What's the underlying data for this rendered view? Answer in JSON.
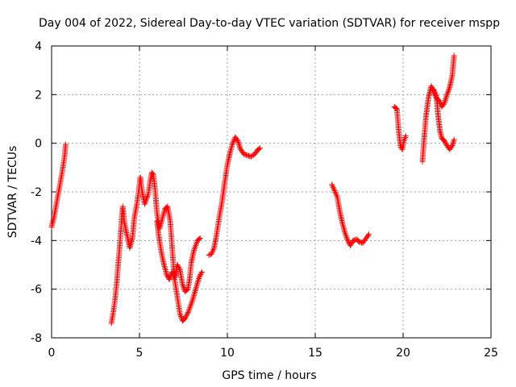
{
  "chart_data": {
    "type": "scatter",
    "title": "Day 004 of 2022, Sidereal Day-to-day VTEC variation (SDTVAR) for receiver mspp",
    "xlabel": "GPS time / hours",
    "ylabel": "SDTVAR / TECUs",
    "xlim": [
      0,
      25
    ],
    "ylim": [
      -8,
      4
    ],
    "xticks": [
      0,
      5,
      10,
      15,
      20,
      25
    ],
    "yticks": [
      -8,
      -6,
      -4,
      -2,
      0,
      2,
      4
    ],
    "grid": true,
    "marker": "+",
    "color": "#ff0000",
    "segments": [
      [
        [
          0.0,
          -3.45
        ],
        [
          0.15,
          -3.0
        ],
        [
          0.3,
          -2.4
        ],
        [
          0.45,
          -1.8
        ],
        [
          0.6,
          -1.2
        ],
        [
          0.75,
          -0.5
        ],
        [
          0.8,
          -0.05
        ]
      ],
      [
        [
          3.4,
          -7.4
        ],
        [
          3.5,
          -7.0
        ],
        [
          3.6,
          -6.5
        ],
        [
          3.7,
          -5.8
        ],
        [
          3.8,
          -4.9
        ],
        [
          3.9,
          -4.0
        ],
        [
          4.0,
          -3.0
        ],
        [
          4.05,
          -2.6
        ],
        [
          4.15,
          -3.3
        ],
        [
          4.3,
          -3.8
        ],
        [
          4.45,
          -4.3
        ],
        [
          4.6,
          -3.9
        ],
        [
          4.7,
          -3.1
        ],
        [
          4.85,
          -2.5
        ],
        [
          4.95,
          -2.0
        ],
        [
          5.05,
          -1.4
        ],
        [
          5.15,
          -2.0
        ],
        [
          5.3,
          -2.5
        ],
        [
          5.5,
          -2.1
        ],
        [
          5.6,
          -1.6
        ],
        [
          5.7,
          -1.2
        ],
        [
          5.8,
          -1.3
        ],
        [
          5.9,
          -2.0
        ],
        [
          6.0,
          -2.9
        ],
        [
          6.15,
          -3.5
        ],
        [
          6.3,
          -3.1
        ],
        [
          6.45,
          -2.7
        ],
        [
          6.6,
          -2.6
        ],
        [
          6.75,
          -3.2
        ],
        [
          6.85,
          -4.2
        ],
        [
          6.95,
          -5.2
        ],
        [
          7.05,
          -5.5
        ],
        [
          7.15,
          -5.0
        ],
        [
          7.3,
          -5.2
        ],
        [
          7.45,
          -5.8
        ],
        [
          7.6,
          -6.1
        ],
        [
          7.75,
          -6.0
        ],
        [
          7.85,
          -5.6
        ],
        [
          7.95,
          -4.9
        ],
        [
          8.1,
          -4.4
        ],
        [
          8.3,
          -4.0
        ],
        [
          8.45,
          -3.9
        ]
      ],
      [
        [
          6.0,
          -3.2
        ],
        [
          6.1,
          -3.8
        ],
        [
          6.25,
          -4.5
        ],
        [
          6.4,
          -5.0
        ],
        [
          6.55,
          -5.4
        ],
        [
          6.7,
          -5.6
        ],
        [
          6.85,
          -5.3
        ],
        [
          7.0,
          -5.6
        ],
        [
          7.15,
          -6.3
        ],
        [
          7.3,
          -7.0
        ],
        [
          7.45,
          -7.3
        ],
        [
          7.6,
          -7.2
        ],
        [
          7.8,
          -6.9
        ],
        [
          8.0,
          -6.5
        ],
        [
          8.2,
          -6.0
        ],
        [
          8.4,
          -5.5
        ],
        [
          8.55,
          -5.3
        ]
      ],
      [
        [
          8.95,
          -4.6
        ],
        [
          9.1,
          -4.55
        ],
        [
          9.25,
          -4.3
        ],
        [
          9.4,
          -3.7
        ],
        [
          9.55,
          -3.0
        ],
        [
          9.7,
          -2.4
        ],
        [
          9.85,
          -1.6
        ],
        [
          10.0,
          -0.9
        ],
        [
          10.15,
          -0.4
        ],
        [
          10.3,
          0.0
        ],
        [
          10.45,
          0.25
        ],
        [
          10.6,
          0.1
        ],
        [
          10.75,
          -0.25
        ],
        [
          10.95,
          -0.45
        ],
        [
          11.15,
          -0.5
        ],
        [
          11.35,
          -0.55
        ],
        [
          11.55,
          -0.45
        ],
        [
          11.7,
          -0.3
        ],
        [
          11.85,
          -0.2
        ]
      ],
      [
        [
          15.95,
          -1.7
        ],
        [
          16.1,
          -1.95
        ],
        [
          16.25,
          -2.2
        ],
        [
          16.4,
          -2.8
        ],
        [
          16.55,
          -3.3
        ],
        [
          16.7,
          -3.7
        ],
        [
          16.85,
          -4.0
        ],
        [
          17.0,
          -4.2
        ],
        [
          17.15,
          -4.0
        ],
        [
          17.35,
          -3.95
        ],
        [
          17.5,
          -4.05
        ],
        [
          17.7,
          -4.1
        ],
        [
          17.85,
          -3.95
        ],
        [
          18.05,
          -3.75
        ]
      ],
      [
        [
          19.5,
          1.5
        ],
        [
          19.65,
          1.4
        ],
        [
          19.75,
          0.5
        ],
        [
          19.85,
          -0.1
        ],
        [
          19.95,
          -0.25
        ],
        [
          20.05,
          0.1
        ],
        [
          20.15,
          0.3
        ]
      ],
      [
        [
          21.1,
          -0.75
        ],
        [
          21.2,
          0.2
        ],
        [
          21.3,
          1.1
        ],
        [
          21.45,
          1.9
        ],
        [
          21.6,
          2.35
        ],
        [
          21.75,
          2.1
        ],
        [
          21.9,
          1.85
        ],
        [
          22.05,
          1.75
        ],
        [
          22.2,
          1.5
        ],
        [
          22.35,
          1.65
        ],
        [
          22.5,
          2.0
        ],
        [
          22.65,
          2.3
        ],
        [
          22.8,
          2.8
        ],
        [
          22.9,
          3.6
        ]
      ],
      [
        [
          21.75,
          2.2
        ],
        [
          21.9,
          1.9
        ],
        [
          22.0,
          1.1
        ],
        [
          22.1,
          0.5
        ],
        [
          22.2,
          0.2
        ],
        [
          22.35,
          0.1
        ],
        [
          22.5,
          -0.1
        ],
        [
          22.65,
          -0.25
        ],
        [
          22.8,
          -0.1
        ],
        [
          22.9,
          0.15
        ]
      ]
    ]
  }
}
